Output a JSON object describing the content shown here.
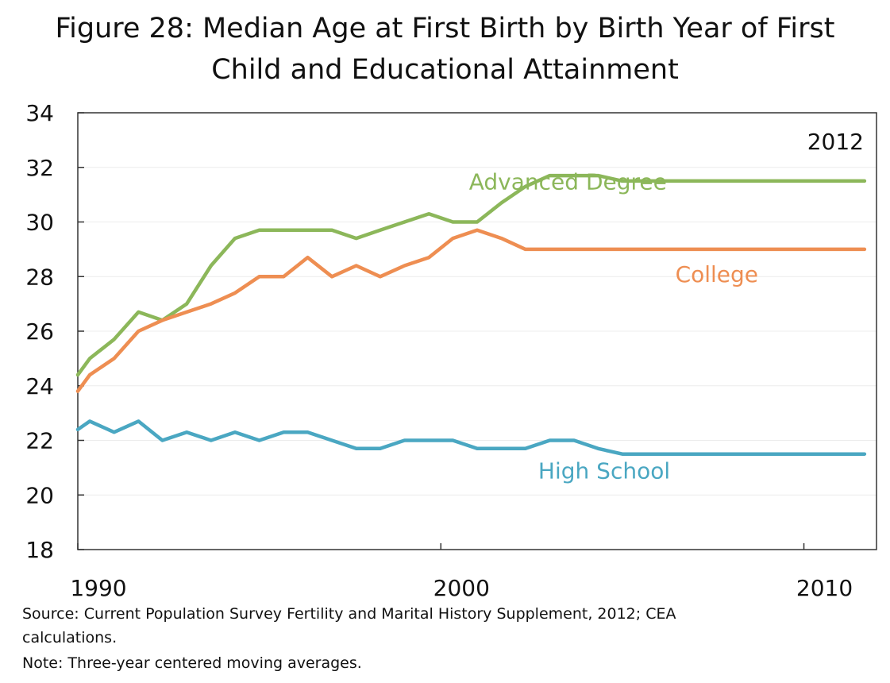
{
  "chart_data": {
    "type": "line",
    "title_lines": [
      "Figure 28: Median Age at First Birth by Birth Year of First",
      "Child and Educational Attainment"
    ],
    "annotation": "2012",
    "xlim": [
      1990,
      2012
    ],
    "ylim": [
      18,
      34
    ],
    "yticks": [
      18,
      20,
      22,
      24,
      26,
      28,
      30,
      32,
      34
    ],
    "ytick_labels": [
      "18",
      "20",
      "22",
      "24",
      "26",
      "28",
      "30",
      "32",
      "34"
    ],
    "xticks": [
      1990,
      2000,
      2010
    ],
    "xtick_labels": [
      "1990",
      "2000",
      "2010"
    ],
    "grid": true,
    "x": [
      1990,
      1990.33,
      1991,
      1991.67,
      1992.33,
      1993,
      1993.67,
      1994.33,
      1995,
      1995.67,
      1996.33,
      1997,
      1997.67,
      1998.33,
      1999,
      1999.67,
      2000.33,
      2001,
      2001.67,
      2002.33,
      2003,
      2003.67,
      2004.33,
      2005,
      2005.67,
      2006.33,
      2007,
      2007.67,
      2008.33,
      2009,
      2009.67,
      2010.33,
      2011,
      2011.67
    ],
    "series": [
      {
        "name": "Advanced Degree",
        "color": "#8cb75a",
        "label_x": 2003.5,
        "label_y": 31.2,
        "values": [
          24.4,
          25,
          25.7,
          26.7,
          26.4,
          27,
          28.4,
          29.4,
          29.7,
          29.7,
          29.7,
          29.7,
          29.4,
          29.7,
          30,
          30.3,
          30,
          30,
          30.7,
          31.3,
          31.7,
          31.7,
          31.7,
          31.5,
          31.5,
          31.5,
          31.5,
          31.5,
          31.5,
          31.5,
          31.5,
          31.5,
          31.5,
          31.5
        ]
      },
      {
        "name": "College",
        "color": "#ee8e52",
        "label_x": 2007.6,
        "label_y": 27.8,
        "values": [
          23.8,
          24.4,
          25,
          26,
          26.4,
          26.7,
          27,
          27.4,
          28,
          28,
          28.7,
          28,
          28.4,
          28,
          28.4,
          28.7,
          29.4,
          29.7,
          29.4,
          29,
          29,
          29,
          29,
          29,
          29,
          29,
          29,
          29,
          29,
          29,
          29,
          29,
          29,
          29
        ]
      },
      {
        "name": "High School",
        "color": "#4aa7c2",
        "label_x": 2004.5,
        "label_y": 20.6,
        "values": [
          22.4,
          22.7,
          22.3,
          22.7,
          22,
          22.3,
          22,
          22.3,
          22,
          22.3,
          22.3,
          22,
          21.7,
          21.7,
          22,
          22,
          22,
          21.7,
          21.7,
          21.7,
          22,
          22,
          21.7,
          21.5,
          21.5,
          21.5,
          21.5,
          21.5,
          21.5,
          21.5,
          21.5,
          21.5,
          21.5,
          21.5
        ]
      }
    ],
    "source": "Source: Current Population Survey Fertility and Marital History Supplement, 2012; CEA",
    "source_cont": "calculations.",
    "note": "Note: Three-year centered moving averages."
  }
}
